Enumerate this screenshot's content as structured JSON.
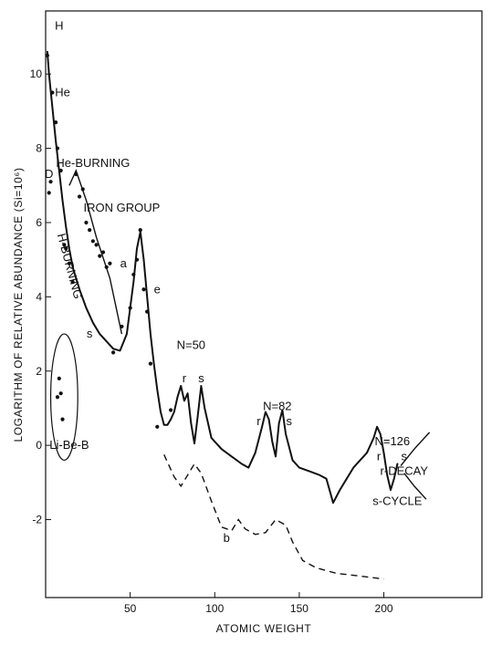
{
  "chart_data": {
    "type": "line",
    "xlabel": "ATOMIC WEIGHT",
    "ylabel": "LOGARITHM OF RELATIVE ABUNDANCE (Si=10⁶)",
    "xlim": [
      0,
      258
    ],
    "ylim": [
      -4.1,
      11.7
    ],
    "x_ticks": [
      {
        "value": 50,
        "label": "50"
      },
      {
        "value": 100,
        "label": "100"
      },
      {
        "value": 150,
        "label": "150"
      },
      {
        "value": 200,
        "label": "200"
      }
    ],
    "y_ticks": [
      {
        "value": 10,
        "label": "10"
      },
      {
        "value": 8,
        "label": "8"
      },
      {
        "value": 6,
        "label": "6"
      },
      {
        "value": 4,
        "label": "4"
      },
      {
        "value": 2,
        "label": "2"
      },
      {
        "value": 0,
        "label": "0"
      },
      {
        "value": -2,
        "label": "-2"
      }
    ],
    "grid": false,
    "series": [
      {
        "style": "solid",
        "x": [
          1,
          2,
          4,
          6,
          8,
          10,
          12,
          14,
          16,
          20,
          24,
          28,
          32,
          36,
          40,
          44,
          48,
          52,
          54,
          56,
          58,
          60,
          62,
          64,
          66,
          68,
          70,
          72,
          74,
          76,
          78,
          80,
          82,
          84,
          86,
          88,
          90,
          92,
          94,
          98,
          104,
          110,
          116,
          120,
          124,
          128,
          130,
          132,
          134,
          136,
          138,
          140,
          142,
          146,
          150,
          156,
          162,
          166,
          170,
          174,
          178,
          182,
          186,
          190,
          194,
          196,
          198,
          200,
          202,
          204,
          206,
          208
        ],
        "y": [
          10.6,
          10.0,
          9.1,
          8.2,
          7.4,
          6.6,
          5.9,
          5.3,
          4.8,
          4.2,
          3.7,
          3.3,
          3.0,
          2.8,
          2.6,
          2.55,
          3.0,
          4.4,
          5.3,
          5.75,
          5.0,
          4.0,
          3.0,
          2.2,
          1.5,
          0.9,
          0.55,
          0.55,
          0.7,
          0.9,
          1.3,
          1.6,
          1.2,
          1.4,
          0.6,
          0.05,
          0.8,
          1.6,
          1.0,
          0.2,
          -0.1,
          -0.3,
          -0.5,
          -0.6,
          -0.2,
          0.5,
          0.9,
          0.7,
          0.1,
          -0.3,
          0.6,
          0.95,
          0.3,
          -0.4,
          -0.6,
          -0.7,
          -0.8,
          -0.9,
          -1.55,
          -1.2,
          -0.9,
          -0.6,
          -0.4,
          -0.2,
          0.2,
          0.5,
          0.3,
          -0.2,
          -0.8,
          -1.2,
          -0.9,
          -0.5
        ]
      },
      {
        "name": "a",
        "style": "solid",
        "x": [
          14,
          18,
          24,
          30,
          38,
          45
        ],
        "y": [
          7.0,
          7.4,
          6.6,
          5.6,
          4.5,
          3.0
        ]
      },
      {
        "name": "b",
        "style": "dashed",
        "x": [
          70,
          76,
          80,
          84,
          88,
          92,
          98,
          104,
          110,
          114,
          118,
          124,
          130,
          136,
          142,
          146,
          152,
          160,
          172,
          186,
          200
        ],
        "y": [
          -0.25,
          -0.85,
          -1.1,
          -0.8,
          -0.5,
          -0.75,
          -1.5,
          -2.2,
          -2.3,
          -2.0,
          -2.25,
          -2.4,
          -2.35,
          -2.0,
          -2.15,
          -2.6,
          -3.1,
          -3.3,
          -3.45,
          -3.52,
          -3.6
        ]
      },
      {
        "style": "solid",
        "x": [
          227,
          218,
          210
        ],
        "y": [
          0.35,
          -0.1,
          -0.55
        ]
      },
      {
        "style": "solid",
        "x": [
          225,
          218,
          212
        ],
        "y": [
          -1.45,
          -1.1,
          -0.75
        ]
      }
    ],
    "points": {
      "x": [
        1,
        2,
        3,
        4,
        6,
        7,
        9,
        11,
        12,
        14,
        16,
        18,
        20,
        24,
        28,
        32,
        36,
        40,
        45,
        50,
        52,
        54,
        56,
        58,
        60,
        62,
        66,
        74,
        22,
        26,
        30,
        34,
        38,
        7,
        8,
        9,
        10
      ],
      "y": [
        10.5,
        6.8,
        7.1,
        9.5,
        8.7,
        8.0,
        7.4,
        5.4,
        5.3,
        4.9,
        4.4,
        7.3,
        6.7,
        6.0,
        5.5,
        5.1,
        4.8,
        2.5,
        3.2,
        3.7,
        4.6,
        5.0,
        5.8,
        4.2,
        3.6,
        2.2,
        0.5,
        0.95,
        6.9,
        5.8,
        5.4,
        5.2,
        4.9,
        1.3,
        1.8,
        1.4,
        0.7
      ]
    },
    "annotations": [
      {
        "text": "H",
        "x": 8,
        "y": 11.2
      },
      {
        "text": "He",
        "x": 10,
        "y": 9.4
      },
      {
        "text": "D",
        "x": 2,
        "y": 7.2
      },
      {
        "text": "He-BURNING",
        "x": 28,
        "y": 7.5
      },
      {
        "text": "H-BURNING",
        "x": 12,
        "y": 4.8,
        "rotate": 75
      },
      {
        "text": "s",
        "x": 26,
        "y": 2.9
      },
      {
        "text": "a",
        "x": 46,
        "y": 4.8
      },
      {
        "text": "IRON GROUP",
        "x": 45,
        "y": 6.3
      },
      {
        "text": "e",
        "x": 66,
        "y": 4.1
      },
      {
        "text": "N=50",
        "x": 86,
        "y": 2.6
      },
      {
        "text": "r",
        "x": 82,
        "y": 1.7
      },
      {
        "text": "s",
        "x": 92,
        "y": 1.7
      },
      {
        "text": "N=82",
        "x": 137,
        "y": 0.95
      },
      {
        "text": "r",
        "x": 126,
        "y": 0.55
      },
      {
        "text": "s",
        "x": 144,
        "y": 0.55
      },
      {
        "text": "N=126",
        "x": 205,
        "y": 0.0
      },
      {
        "text": "r",
        "x": 197,
        "y": -0.4
      },
      {
        "text": "s",
        "x": 212,
        "y": -0.4
      },
      {
        "text": "r-DECAY",
        "x": 212,
        "y": -0.8
      },
      {
        "text": "s-CYCLE",
        "x": 208,
        "y": -1.6
      },
      {
        "text": "b",
        "x": 107,
        "y": -2.6
      },
      {
        "text": "Li-Be-B",
        "x": 14,
        "y": -0.1
      }
    ],
    "ellipse": {
      "x": 11,
      "y": 1.3,
      "rx": 8,
      "ry": 1.7
    }
  }
}
